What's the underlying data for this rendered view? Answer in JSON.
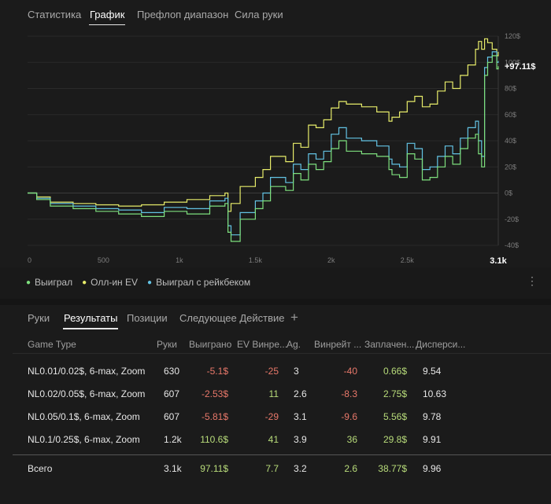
{
  "top_tabs": [
    "Статистика",
    "График",
    "Префлоп диапазон",
    "Сила руки"
  ],
  "chart_data": {
    "type": "line",
    "x_ticks": [
      "0",
      "500",
      "1k",
      "1.5k",
      "2k",
      "2.5k"
    ],
    "x_end_label": "3.1k",
    "y_ticks": [
      "120$",
      "100$",
      "80$",
      "60$",
      "40$",
      "20$",
      "0$",
      "-20$",
      "-40$"
    ],
    "ylim": [
      -40,
      120
    ],
    "xlim": [
      0,
      3100
    ],
    "final_value_label": "+97.11$",
    "colors": {
      "won": "#7ee07e",
      "allin_ev": "#e7ec6a",
      "rakeback": "#63c3e4"
    },
    "series": [
      {
        "name": "Выиграл",
        "x": [
          0,
          60,
          150,
          300,
          450,
          600,
          750,
          900,
          1050,
          1200,
          1300,
          1320,
          1340,
          1400,
          1500,
          1550,
          1600,
          1700,
          1750,
          1800,
          1850,
          1900,
          1950,
          2000,
          2050,
          2100,
          2200,
          2300,
          2380,
          2400,
          2450,
          2500,
          2550,
          2600,
          2650,
          2700,
          2750,
          2800,
          2850,
          2900,
          2950,
          2970,
          2990,
          3010,
          3030,
          3060,
          3090,
          3100
        ],
        "y": [
          0,
          -5,
          -10,
          -12,
          -14,
          -16,
          -18,
          -14,
          -16,
          -10,
          -8,
          -30,
          -37,
          -20,
          -12,
          -6,
          5,
          2,
          15,
          10,
          22,
          18,
          24,
          34,
          40,
          32,
          30,
          28,
          18,
          14,
          12,
          30,
          26,
          10,
          12,
          20,
          28,
          22,
          34,
          42,
          45,
          30,
          20,
          90,
          100,
          105,
          95,
          97
        ]
      },
      {
        "name": "Олл-ин EV",
        "x": [
          0,
          60,
          150,
          300,
          450,
          600,
          750,
          900,
          1050,
          1200,
          1300,
          1320,
          1340,
          1400,
          1500,
          1550,
          1600,
          1700,
          1750,
          1800,
          1850,
          1900,
          1950,
          2000,
          2050,
          2100,
          2200,
          2300,
          2380,
          2400,
          2450,
          2500,
          2550,
          2600,
          2650,
          2700,
          2750,
          2800,
          2850,
          2900,
          2950,
          2970,
          2990,
          3010,
          3030,
          3060,
          3090,
          3100
        ],
        "y": [
          0,
          -3,
          -7,
          -8,
          -9,
          -10,
          -9,
          -7,
          -5,
          -2,
          0,
          -14,
          -8,
          5,
          12,
          18,
          28,
          24,
          38,
          35,
          52,
          50,
          56,
          65,
          70,
          68,
          66,
          62,
          55,
          58,
          62,
          70,
          74,
          66,
          68,
          78,
          85,
          80,
          90,
          98,
          110,
          116,
          110,
          118,
          115,
          110,
          105,
          108
        ]
      },
      {
        "name": "Выиграл с рейкбеком",
        "x": [
          0,
          60,
          150,
          300,
          450,
          600,
          750,
          900,
          1050,
          1200,
          1300,
          1320,
          1340,
          1400,
          1500,
          1550,
          1600,
          1700,
          1750,
          1800,
          1850,
          1900,
          1950,
          2000,
          2050,
          2100,
          2200,
          2300,
          2380,
          2400,
          2450,
          2500,
          2550,
          2600,
          2650,
          2700,
          2750,
          2800,
          2850,
          2900,
          2950,
          2970,
          2990,
          3010,
          3030,
          3060,
          3090,
          3100
        ],
        "y": [
          0,
          -4,
          -8,
          -10,
          -12,
          -13,
          -15,
          -11,
          -12,
          -6,
          -4,
          -25,
          -32,
          -15,
          -6,
          0,
          12,
          8,
          22,
          18,
          30,
          26,
          32,
          45,
          50,
          42,
          40,
          36,
          26,
          22,
          20,
          38,
          34,
          18,
          20,
          28,
          36,
          30,
          42,
          50,
          55,
          40,
          28,
          96,
          104,
          108,
          100,
          101
        ]
      }
    ]
  },
  "legend": {
    "won": "Выиграл",
    "allin_ev": "Олл-ин EV",
    "rakeback": "Выиграл с рейкбеком"
  },
  "bottom_tabs": [
    "Руки",
    "Результаты",
    "Позиции",
    "Следующее Действие"
  ],
  "add_tab_glyph": "+",
  "table": {
    "headers": [
      "Game Type",
      "Руки",
      "Выиграно",
      "EV Винре...",
      "Ag.",
      "Винрейт ...",
      "Заплачен...",
      "Дисперси..."
    ],
    "rows": [
      [
        "NL0.01/0.02$, 6-max, Zoom",
        "630",
        "-5.1$",
        "-25",
        "3",
        "-40",
        "0.66$",
        "9.54"
      ],
      [
        "NL0.02/0.05$, 6-max, Zoom",
        "607",
        "-2.53$",
        "11",
        "2.6",
        "-8.3",
        "2.75$",
        "10.63"
      ],
      [
        "NL0.05/0.1$, 6-max, Zoom",
        "607",
        "-5.81$",
        "-29",
        "3.1",
        "-9.6",
        "5.56$",
        "9.78"
      ],
      [
        "NL0.1/0.25$, 6-max, Zoom",
        "1.2k",
        "110.6$",
        "41",
        "3.9",
        "36",
        "29.8$",
        "9.91"
      ]
    ],
    "total": [
      "Всего",
      "3.1k",
      "97.11$",
      "7.7",
      "3.2",
      "2.6",
      "38.77$",
      "9.96"
    ]
  }
}
